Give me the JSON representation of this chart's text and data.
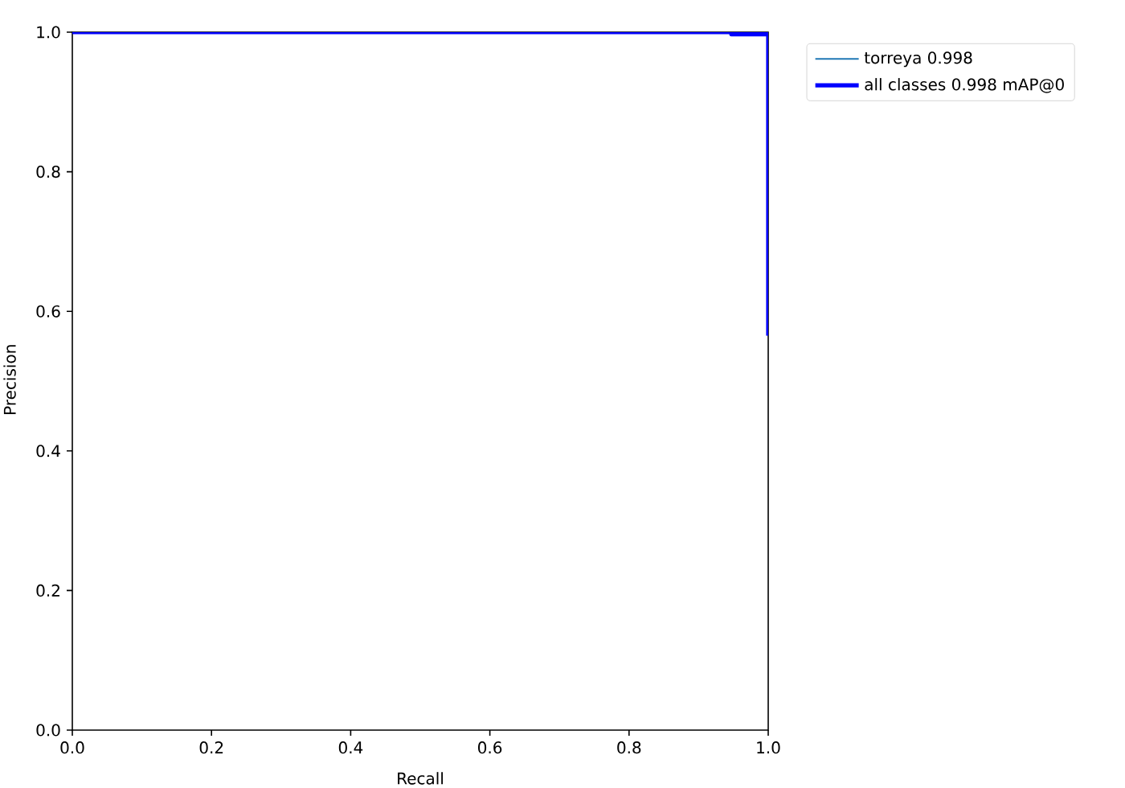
{
  "chart_data": {
    "type": "line",
    "xlabel": "Recall",
    "ylabel": "Precision",
    "xlim": [
      0,
      1
    ],
    "ylim": [
      0,
      1
    ],
    "xticks": [
      {
        "value": 0,
        "label": "0.0"
      },
      0.2,
      0.4,
      0.6,
      0.8,
      {
        "value": 1,
        "label": "1.0"
      }
    ],
    "yticks": [
      {
        "value": 0,
        "label": "0.0"
      },
      0.2,
      0.4,
      0.6,
      0.8,
      {
        "value": 1,
        "label": "1.0"
      }
    ],
    "legend": "top right",
    "series": [
      {
        "name": "torreya 0.998",
        "color": "#1f77b4",
        "values": [
          null
        ]
      },
      {
        "name": "all classes 0.998 mAP@0",
        "color": "#0000ff",
        "x": [
          0,
          0.947,
          0.947,
          1,
          1
        ],
        "values": [
          1,
          1,
          0.997,
          0.997,
          0.565
        ]
      }
    ]
  }
}
